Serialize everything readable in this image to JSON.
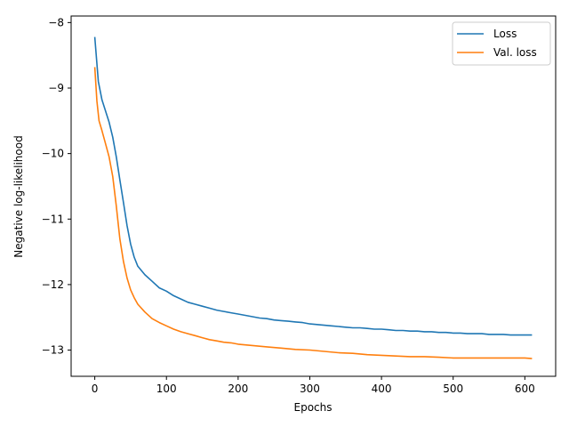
{
  "chart_data": {
    "type": "line",
    "title": "",
    "xlabel": "Epochs",
    "ylabel": "Negative log-likelihood",
    "xlim": [
      -33,
      643
    ],
    "ylim": [
      -13.4,
      -7.9
    ],
    "xticks": [
      0,
      100,
      200,
      300,
      400,
      500,
      600
    ],
    "yticks": [
      -8,
      -9,
      -10,
      -11,
      -12,
      -13
    ],
    "xtick_labels": [
      "0",
      "100",
      "200",
      "300",
      "400",
      "500",
      "600"
    ],
    "ytick_labels": [
      "−8",
      "−9",
      "−10",
      "−11",
      "−12",
      "−13"
    ],
    "grid": false,
    "legend_position": "top-right",
    "series": [
      {
        "name": "Loss",
        "color": "#1f77b4",
        "x": [
          0,
          5,
          10,
          15,
          20,
          25,
          30,
          35,
          40,
          45,
          50,
          55,
          60,
          70,
          80,
          90,
          100,
          110,
          120,
          130,
          140,
          150,
          160,
          170,
          180,
          190,
          200,
          210,
          220,
          230,
          240,
          250,
          260,
          270,
          280,
          290,
          300,
          310,
          320,
          330,
          340,
          350,
          360,
          370,
          380,
          390,
          400,
          410,
          420,
          430,
          440,
          450,
          460,
          470,
          480,
          490,
          500,
          510,
          520,
          530,
          540,
          550,
          560,
          570,
          580,
          590,
          600,
          610
        ],
        "y": [
          -8.22,
          -8.9,
          -9.18,
          -9.35,
          -9.52,
          -9.75,
          -10.05,
          -10.4,
          -10.75,
          -11.1,
          -11.38,
          -11.58,
          -11.72,
          -11.85,
          -11.95,
          -12.05,
          -12.1,
          -12.17,
          -12.22,
          -12.27,
          -12.3,
          -12.33,
          -12.36,
          -12.39,
          -12.41,
          -12.43,
          -12.45,
          -12.47,
          -12.49,
          -12.51,
          -12.52,
          -12.54,
          -12.55,
          -12.56,
          -12.57,
          -12.58,
          -12.6,
          -12.61,
          -12.62,
          -12.63,
          -12.64,
          -12.65,
          -12.66,
          -12.66,
          -12.67,
          -12.68,
          -12.68,
          -12.69,
          -12.7,
          -12.7,
          -12.71,
          -12.71,
          -12.72,
          -12.72,
          -12.73,
          -12.73,
          -12.74,
          -12.74,
          -12.75,
          -12.75,
          -12.75,
          -12.76,
          -12.76,
          -12.76,
          -12.77,
          -12.77,
          -12.77,
          -12.77
        ]
      },
      {
        "name": "Val. loss",
        "color": "#ff7f0e",
        "x": [
          0,
          3,
          6,
          10,
          15,
          20,
          25,
          30,
          35,
          40,
          45,
          50,
          55,
          60,
          70,
          80,
          90,
          100,
          110,
          120,
          130,
          140,
          150,
          160,
          170,
          180,
          190,
          200,
          220,
          240,
          260,
          280,
          300,
          320,
          340,
          360,
          380,
          400,
          420,
          440,
          460,
          480,
          500,
          520,
          540,
          560,
          580,
          600,
          610
        ],
        "y": [
          -8.68,
          -9.2,
          -9.5,
          -9.65,
          -9.85,
          -10.05,
          -10.35,
          -10.8,
          -11.3,
          -11.65,
          -11.9,
          -12.08,
          -12.2,
          -12.3,
          -12.42,
          -12.52,
          -12.58,
          -12.63,
          -12.68,
          -12.72,
          -12.75,
          -12.78,
          -12.81,
          -12.84,
          -12.86,
          -12.88,
          -12.89,
          -12.91,
          -12.93,
          -12.95,
          -12.97,
          -12.99,
          -13.0,
          -13.02,
          -13.04,
          -13.05,
          -13.07,
          -13.08,
          -13.09,
          -13.1,
          -13.1,
          -13.11,
          -13.12,
          -13.12,
          -13.12,
          -13.12,
          -13.12,
          -13.12,
          -13.13
        ]
      }
    ]
  }
}
